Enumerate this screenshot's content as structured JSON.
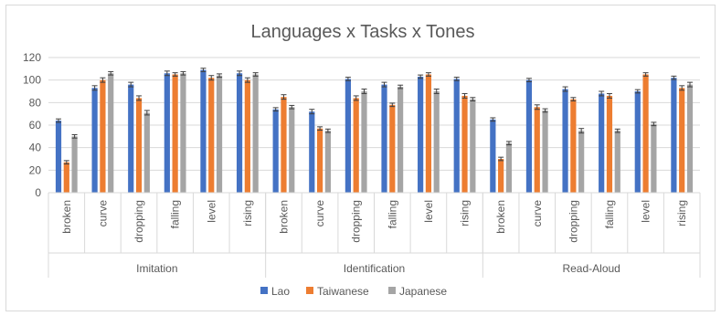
{
  "chart_data": {
    "type": "bar",
    "title": "Languages x Tasks x Tones",
    "xlabel": "",
    "ylabel": "",
    "ylim": [
      0,
      120
    ],
    "yticks": [
      0,
      20,
      40,
      60,
      80,
      100,
      120
    ],
    "grid": true,
    "legend_position": "bottom",
    "groups": [
      {
        "name": "Imitation",
        "categories": [
          "broken",
          "curve",
          "dropping",
          "falling",
          "level",
          "rising"
        ]
      },
      {
        "name": "Identification",
        "categories": [
          "broken",
          "curve",
          "dropping",
          "falling",
          "level",
          "rising"
        ]
      },
      {
        "name": "Read-Aloud",
        "categories": [
          "broken",
          "curve",
          "dropping",
          "falling",
          "level",
          "rising"
        ]
      }
    ],
    "series": [
      {
        "name": "Lao",
        "color": "#4472c4",
        "values": [
          64,
          93,
          96,
          106,
          109,
          106,
          74,
          72,
          101,
          96,
          103,
          101,
          65,
          100,
          92,
          88,
          90,
          102
        ],
        "errors": [
          1.5,
          2,
          2,
          2,
          1.5,
          2,
          1.5,
          2,
          1.5,
          2,
          1.5,
          1.5,
          1.5,
          1.5,
          2,
          2,
          1.5,
          1.5
        ]
      },
      {
        "name": "Taiwanese",
        "color": "#ed7d31",
        "values": [
          27,
          100,
          84,
          105,
          102,
          100,
          85,
          57,
          84,
          78,
          105,
          86,
          30,
          76,
          83,
          86,
          105,
          93
        ],
        "errors": [
          1.5,
          2,
          2,
          1.5,
          2,
          2,
          2,
          1.5,
          2,
          1.5,
          1.5,
          2,
          1.5,
          2,
          1.5,
          2,
          1.5,
          2
        ]
      },
      {
        "name": "Japanese",
        "color": "#a5a5a5",
        "values": [
          50,
          106,
          71,
          106,
          104,
          105,
          76,
          55,
          90,
          94,
          90,
          83,
          44,
          73,
          55,
          55,
          61,
          96
        ],
        "errors": [
          1.5,
          1.5,
          2,
          1.5,
          1.5,
          1.5,
          1.5,
          1.5,
          2,
          1.5,
          2,
          1.5,
          1.5,
          1.5,
          2,
          1.5,
          1.5,
          2
        ]
      }
    ]
  }
}
